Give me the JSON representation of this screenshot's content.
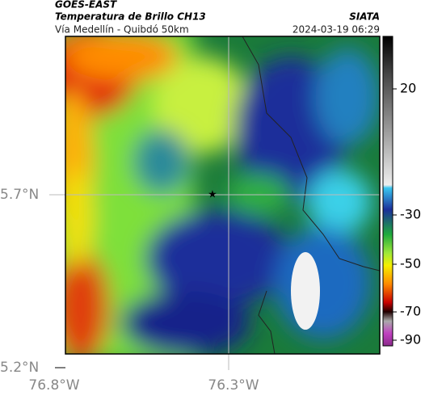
{
  "header": {
    "source": "GOES-EAST",
    "title": "Temperatura de Brillo CH13",
    "credit": "SIATA",
    "subtitle": "Vía Medellín - Quibdó 50km",
    "datetime": "2024-03-19 06:29"
  },
  "axes": {
    "lat_labels": [
      "5.7°N",
      "5.2°N"
    ],
    "lon_labels": [
      "76.8°W",
      "76.3°W"
    ]
  },
  "colorbar": {
    "ticks": [
      20,
      -30,
      -50,
      -70,
      -90
    ]
  }
}
